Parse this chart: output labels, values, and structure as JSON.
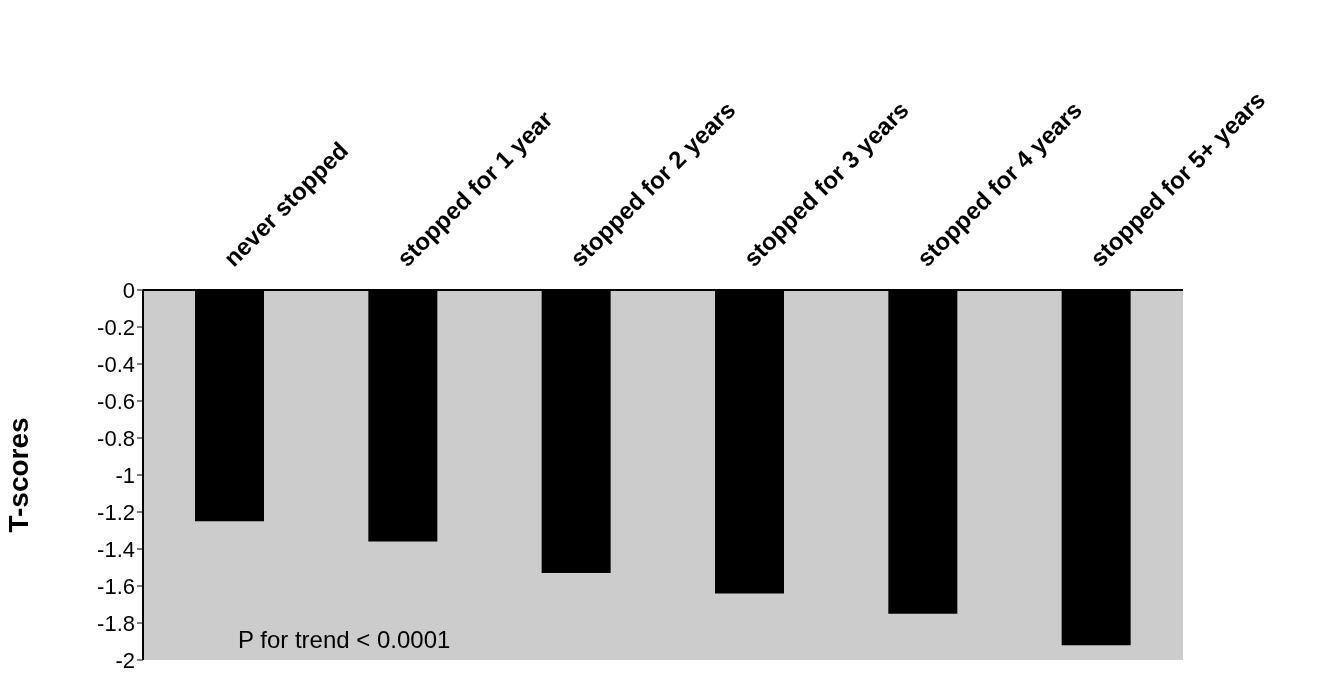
{
  "chart_data": {
    "type": "bar",
    "ylabel": "T-scores",
    "categories": [
      "never stopped",
      "stopped for 1 year",
      "stopped for 2 years",
      "stopped for 3 years",
      "stopped for 4 years",
      "stopped for 5+ years"
    ],
    "values": [
      -1.25,
      -1.36,
      -1.53,
      -1.64,
      -1.75,
      -1.92
    ],
    "color": "#000000",
    "ylim": [
      -2,
      0
    ],
    "yticks": [
      0,
      -0.2,
      -0.4,
      -0.6,
      -0.8,
      -1,
      -1.2,
      -1.4,
      -1.6,
      -1.8,
      -2
    ],
    "annotations": [
      "P for trend < 0.0001"
    ],
    "grid": false
  }
}
